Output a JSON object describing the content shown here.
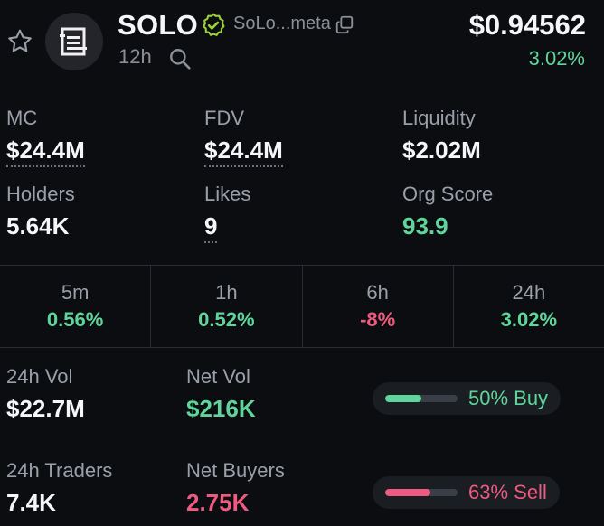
{
  "header": {
    "token_name": "SOLO",
    "mint_short": "SoLo...meta",
    "age": "12h",
    "price": "$0.94562",
    "price_change": "3.02%"
  },
  "stats": {
    "mc": {
      "label": "MC",
      "value": "$24.4M"
    },
    "fdv": {
      "label": "FDV",
      "value": "$24.4M"
    },
    "liquidity": {
      "label": "Liquidity",
      "value": "$2.02M"
    },
    "holders": {
      "label": "Holders",
      "value": "5.64K"
    },
    "likes": {
      "label": "Likes",
      "value": "9"
    },
    "org_score": {
      "label": "Org Score",
      "value": "93.9"
    }
  },
  "timeframes": [
    {
      "label": "5m",
      "value": "0.56%"
    },
    {
      "label": "1h",
      "value": "0.52%"
    },
    {
      "label": "6h",
      "value": "-8%"
    },
    {
      "label": "24h",
      "value": "3.02%"
    }
  ],
  "volume": {
    "vol_label": "24h Vol",
    "vol_value": "$22.7M",
    "net_vol_label": "Net Vol",
    "net_vol_value": "$216K",
    "buy_pill": "50% Buy",
    "buy_fraction": 0.5
  },
  "traders": {
    "traders_label": "24h Traders",
    "traders_value": "7.4K",
    "net_buyers_label": "Net Buyers",
    "net_buyers_value": "2.75K",
    "sell_pill": "63% Sell",
    "sell_fraction": 0.63
  },
  "colors": {
    "positive": "#5fd59b",
    "negative": "#ee5a80",
    "verified": "#9bd43a"
  },
  "icons": [
    "star-icon",
    "token-logo-icon",
    "verified-icon",
    "copy-icon",
    "search-icon"
  ]
}
